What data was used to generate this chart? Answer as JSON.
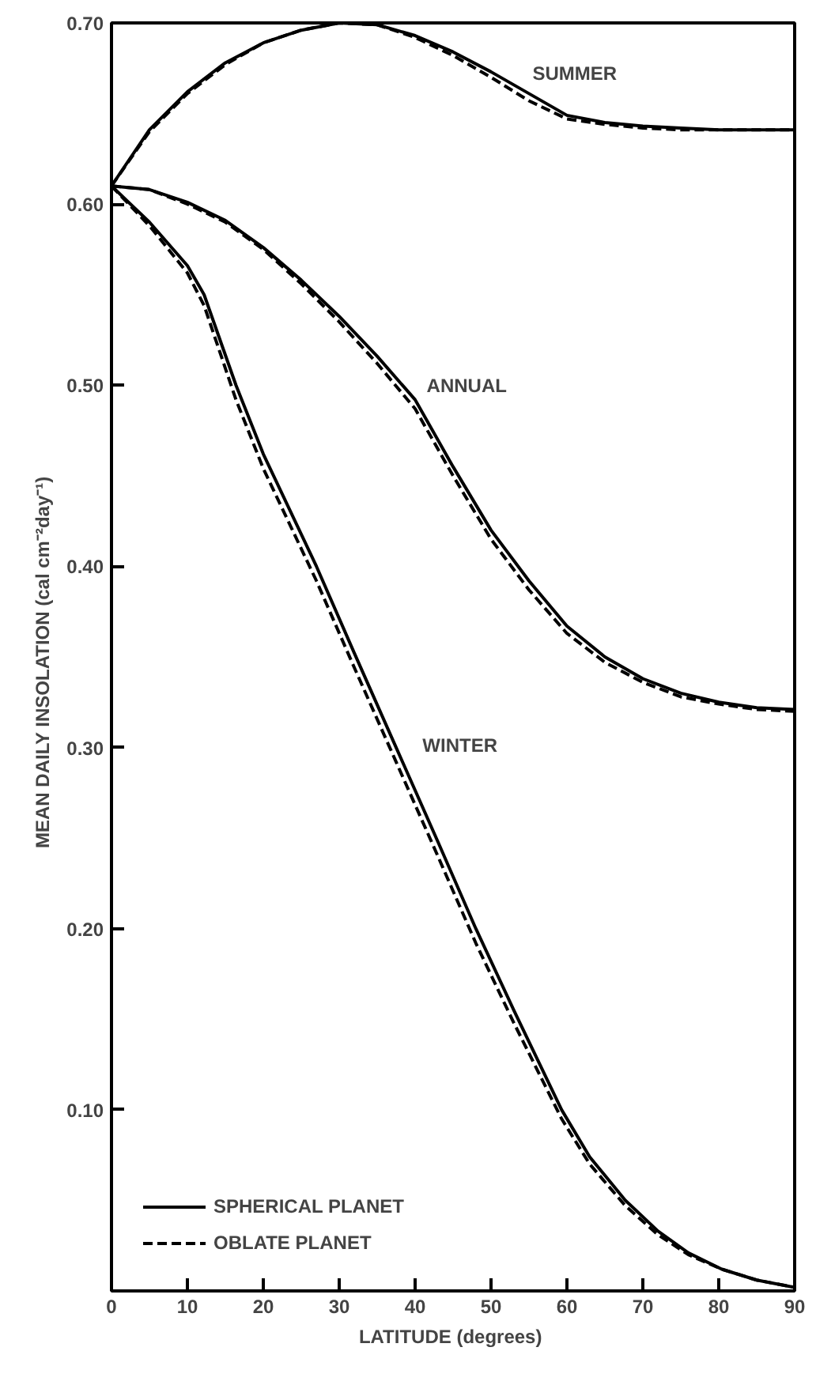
{
  "chart_data": {
    "type": "line",
    "xlabel": "LATITUDE  (degrees)",
    "ylabel": "MEAN DAILY INSOLATION  (cal  cm⁻²day⁻¹)",
    "xlim": [
      0,
      90
    ],
    "ylim": [
      0,
      0.7
    ],
    "xticks": [
      0,
      10,
      20,
      30,
      40,
      50,
      60,
      70,
      80,
      90
    ],
    "yticks": [
      {
        "value": 0.1,
        "label": "0.10"
      },
      {
        "value": 0.2,
        "label": "0.20"
      },
      {
        "value": 0.3,
        "label": "0.30"
      },
      {
        "value": 0.4,
        "label": "0.40"
      },
      {
        "value": 0.5,
        "label": "0.50"
      },
      {
        "value": 0.6,
        "label": "0.60"
      },
      {
        "value": 0.7,
        "label": "0.70"
      }
    ],
    "grid": false,
    "legend": "bottom left",
    "marker": "none",
    "annotations": [
      "SUMMER",
      "ANNUAL",
      "WINTER"
    ],
    "series": [
      {
        "name": "SPHERICAL PLANET",
        "color": "#000000",
        "line_style": "solid",
        "x": [
          0,
          5,
          10,
          15,
          20,
          25,
          30,
          35,
          40,
          45,
          50,
          55,
          60,
          65,
          70,
          75,
          80,
          85,
          90
        ],
        "values": [
          0.61,
          0.641,
          0.662,
          0.678,
          0.689,
          0.696,
          0.7,
          0.699,
          0.693,
          0.684,
          0.673,
          0.661,
          0.649,
          0.645,
          0.643,
          0.642,
          0.641,
          0.641,
          0.641
        ]
      },
      {
        "name": "OBLATE PLANET",
        "color": "#000000",
        "line_style": "dashed",
        "x": [
          0,
          5,
          10,
          15,
          20,
          25,
          30,
          35,
          40,
          45,
          50,
          55,
          60,
          65,
          70,
          75,
          80,
          85,
          90
        ],
        "values": [
          0.61,
          0.64,
          0.661,
          0.677,
          0.689,
          0.696,
          0.7,
          0.699,
          0.692,
          0.682,
          0.67,
          0.657,
          0.647,
          0.644,
          0.642,
          0.641,
          0.641,
          0.641,
          0.641
        ]
      },
      {
        "color": "#000000",
        "line_style": "solid",
        "x": [
          0,
          5,
          10,
          15,
          20,
          25,
          30,
          35,
          40,
          45,
          50,
          55,
          60,
          65,
          70,
          75,
          80,
          85,
          90
        ],
        "values": [
          0.61,
          0.608,
          0.601,
          0.591,
          0.576,
          0.558,
          0.538,
          0.516,
          0.492,
          0.455,
          0.42,
          0.392,
          0.367,
          0.35,
          0.338,
          0.33,
          0.325,
          0.322,
          0.321
        ]
      },
      {
        "color": "#000000",
        "line_style": "dashed",
        "x": [
          0,
          5,
          10,
          15,
          20,
          25,
          30,
          35,
          40,
          45,
          50,
          55,
          60,
          65,
          70,
          75,
          80,
          85,
          90
        ],
        "values": [
          0.61,
          0.608,
          0.6,
          0.59,
          0.575,
          0.556,
          0.535,
          0.512,
          0.487,
          0.45,
          0.415,
          0.387,
          0.363,
          0.347,
          0.336,
          0.328,
          0.324,
          0.321,
          0.32
        ]
      },
      {
        "color": "#000000",
        "line_style": "solid",
        "x": [
          0,
          5,
          10,
          12.2,
          16.4,
          20,
          27,
          32,
          37.5,
          43,
          48,
          53,
          59.3,
          63,
          67.7,
          72,
          76,
          80.4,
          85,
          90
        ],
        "values": [
          0.61,
          0.59,
          0.566,
          0.55,
          0.5,
          0.462,
          0.4,
          0.352,
          0.3,
          0.248,
          0.2,
          0.155,
          0.1,
          0.074,
          0.05,
          0.033,
          0.021,
          0.012,
          0.006,
          0.002
        ]
      },
      {
        "color": "#000000",
        "line_style": "dashed",
        "x": [
          0,
          5,
          10,
          12.2,
          16.4,
          20,
          27,
          32,
          37.5,
          43,
          48,
          53,
          59.3,
          63,
          67.7,
          72,
          76,
          80.4,
          85,
          90
        ],
        "values": [
          0.61,
          0.588,
          0.562,
          0.544,
          0.492,
          0.454,
          0.392,
          0.344,
          0.292,
          0.24,
          0.192,
          0.148,
          0.095,
          0.07,
          0.047,
          0.031,
          0.02,
          0.012,
          0.006,
          0.002
        ]
      }
    ]
  }
}
